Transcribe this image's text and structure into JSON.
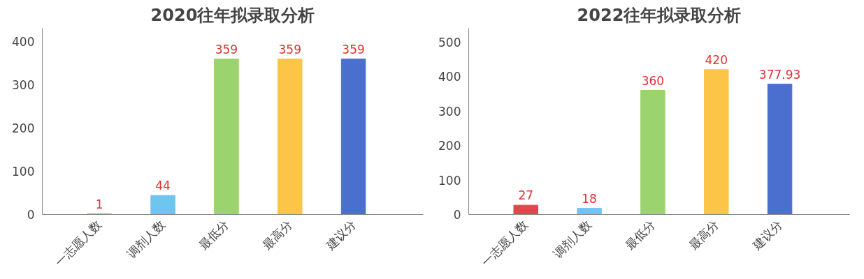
{
  "chart_data": [
    {
      "type": "bar",
      "title": "2020往年拟录取分析",
      "categories": [
        "一志愿人数",
        "调剂人数",
        "最低分",
        "最高分",
        "建议分"
      ],
      "values": [
        1,
        44,
        359,
        359,
        359
      ],
      "colors": [
        "#e0474c",
        "#6ec6f0",
        "#9bd46e",
        "#fcc548",
        "#4a6fcf"
      ],
      "ylim": [
        0,
        430
      ],
      "yticks": [
        0,
        100,
        200,
        300,
        400
      ],
      "data_labels": true,
      "grid": false
    },
    {
      "type": "bar",
      "title": "2022往年拟录取分析",
      "categories": [
        "一志愿人数",
        "调剂人数",
        "最低分",
        "最高分",
        "建议分"
      ],
      "values": [
        27,
        18,
        360,
        420,
        377.93
      ],
      "colors": [
        "#e0474c",
        "#6ec6f0",
        "#9bd46e",
        "#fcc548",
        "#4a6fcf"
      ],
      "ylim": [
        0,
        540
      ],
      "yticks": [
        0,
        100,
        200,
        300,
        400,
        500
      ],
      "data_labels": true,
      "grid": false
    }
  ]
}
